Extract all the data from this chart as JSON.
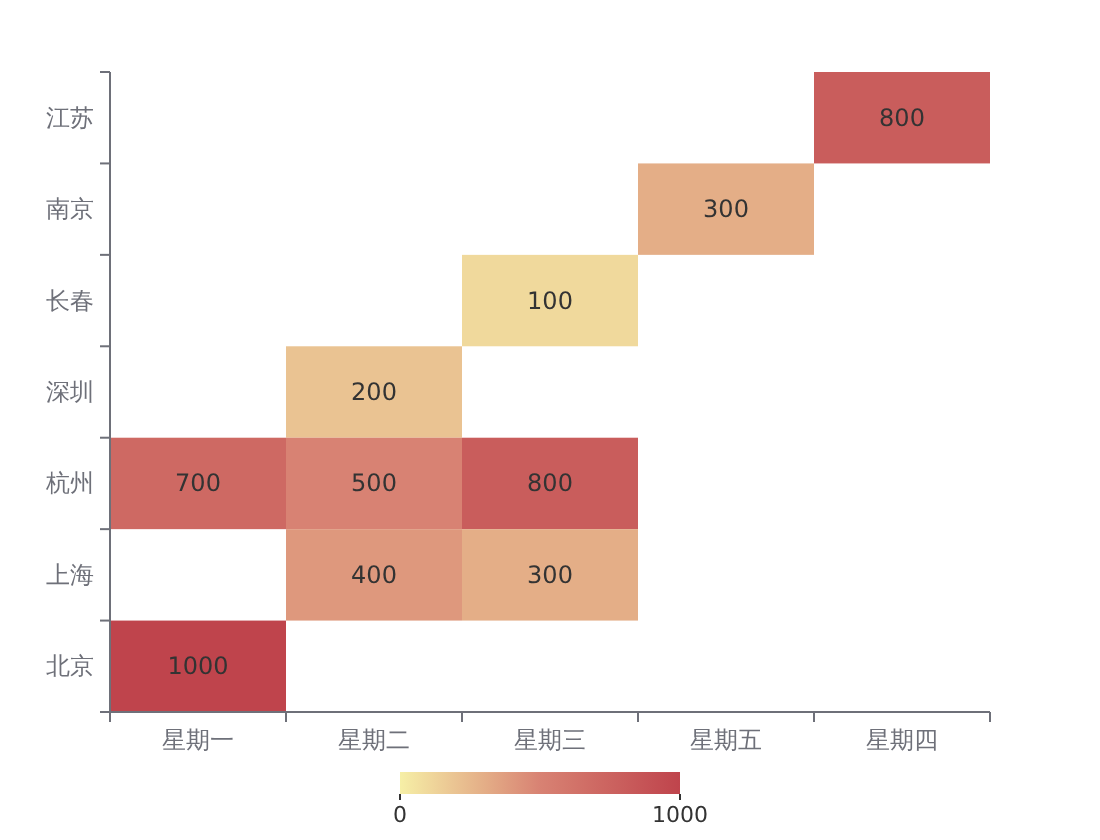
{
  "chart_data": {
    "type": "heatmap",
    "categories": [
      "星期一",
      "星期二",
      "星期三",
      "星期五",
      "星期四"
    ],
    "y_categories": [
      "江苏",
      "南京",
      "长春",
      "深圳",
      "杭州",
      "上海",
      "北京"
    ],
    "cells": [
      [
        null,
        null,
        null,
        null,
        800
      ],
      [
        null,
        null,
        null,
        300,
        null
      ],
      [
        null,
        null,
        100,
        null,
        null
      ],
      [
        null,
        200,
        null,
        null,
        null
      ],
      [
        700,
        500,
        800,
        null,
        null
      ],
      [
        null,
        400,
        300,
        null,
        null
      ],
      [
        1000,
        null,
        null,
        null,
        null
      ]
    ],
    "clim": [
      0,
      1000
    ],
    "cticks": [
      0,
      1000
    ],
    "data_labels": true
  }
}
